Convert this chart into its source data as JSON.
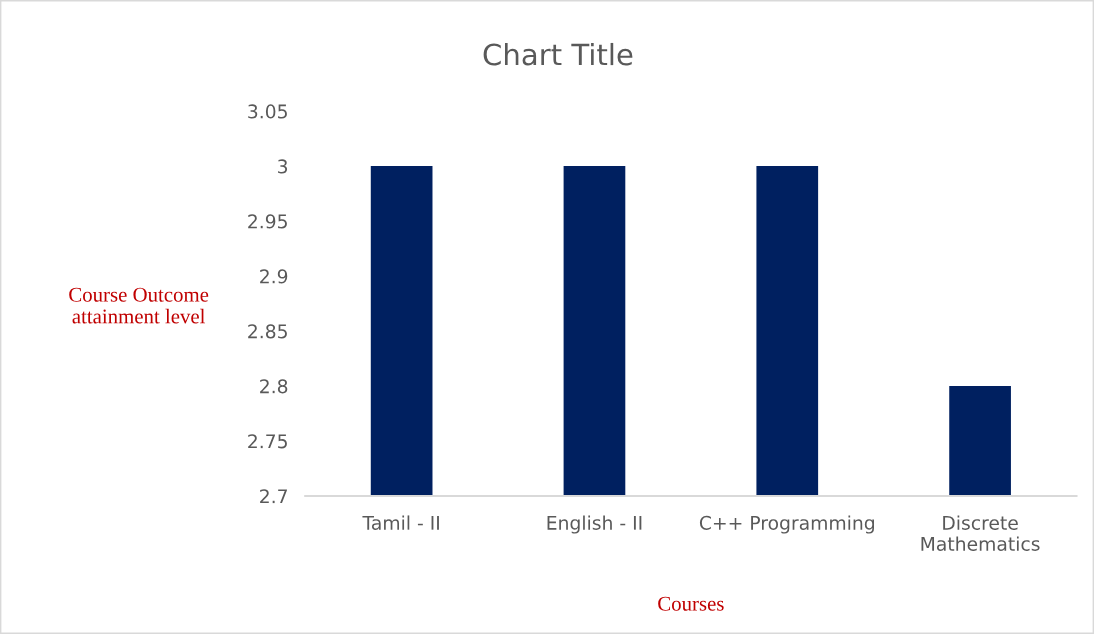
{
  "chart_data": {
    "type": "bar",
    "title": "Chart Title",
    "xlabel": "Courses",
    "ylabel": "Course Outcome\nattainment level",
    "categories": [
      "Tamil - II",
      "English - II",
      "C++ Programming",
      "Discrete\nMathematics"
    ],
    "values": [
      3,
      3,
      3,
      2.8
    ],
    "color": "#002060",
    "ylim": [
      2.7,
      3.05
    ],
    "yticks": [
      2.7,
      2.75,
      2.8,
      2.85,
      2.9,
      2.95,
      3,
      3.05
    ]
  }
}
